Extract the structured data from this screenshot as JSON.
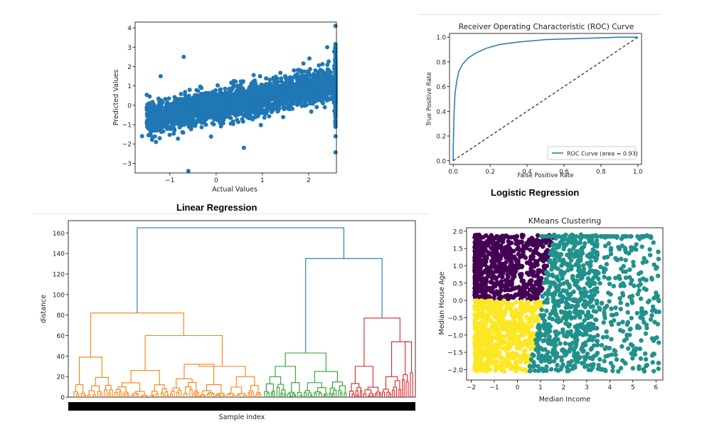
{
  "captions": {
    "linear": "Linear Regression",
    "logistic": "Logistic Regression"
  },
  "colors": {
    "blue": "#1f77b4",
    "orange": "#ff7f0e",
    "green": "#2ca02c",
    "red": "#d62728",
    "link_blue": "#1f77b4",
    "purple": "#440154",
    "teal": "#21918c",
    "yellow": "#fde725"
  },
  "chart_data": [
    {
      "id": "linear",
      "type": "scatter",
      "title": "",
      "xlabel": "Actual Values",
      "ylabel": "Predicted Values",
      "xlim": [
        -1.75,
        2.6
      ],
      "ylim": [
        -3.5,
        4.3
      ],
      "xticks": [
        "−1",
        "0",
        "1",
        "2"
      ],
      "xtick_values": [
        -1,
        0,
        1,
        2
      ],
      "yticks": [
        "−3",
        "−2",
        "−1",
        "0",
        "1",
        "2",
        "3",
        "4"
      ],
      "ytick_values": [
        -3,
        -2,
        -1,
        0,
        1,
        2,
        3,
        4
      ],
      "points_sample": [
        [
          -1.6,
          -1.6
        ],
        [
          -1.4,
          -0.8
        ],
        [
          -1.3,
          -1.9
        ],
        [
          -1.2,
          1.5
        ],
        [
          -1.1,
          -1.0
        ],
        [
          -1.0,
          -0.5
        ],
        [
          -0.9,
          -1.3
        ],
        [
          -0.8,
          -0.2
        ],
        [
          -0.7,
          2.5
        ],
        [
          -0.6,
          -3.4
        ],
        [
          -0.5,
          0.2
        ],
        [
          -0.4,
          -0.6
        ],
        [
          -0.3,
          0.4
        ],
        [
          -0.2,
          -0.4
        ],
        [
          0.0,
          0.3
        ],
        [
          0.2,
          0.0
        ],
        [
          0.4,
          0.6
        ],
        [
          0.6,
          0.2
        ],
        [
          0.6,
          -2.2
        ],
        [
          0.8,
          0.8
        ],
        [
          1.0,
          0.5
        ],
        [
          1.2,
          1.0
        ],
        [
          1.4,
          0.6
        ],
        [
          1.6,
          1.1
        ],
        [
          1.8,
          0.8
        ],
        [
          2.0,
          1.1
        ],
        [
          2.2,
          1.4
        ],
        [
          2.4,
          3.0
        ],
        [
          2.58,
          4.1
        ],
        [
          2.58,
          -1.0
        ]
      ]
    },
    {
      "id": "roc",
      "type": "line",
      "title": "Receiver Operating Characteristic (ROC) Curve",
      "xlabel": "False Positive Rate",
      "ylabel": "True Positive Rate",
      "xlim": [
        -0.02,
        1.02
      ],
      "ylim": [
        -0.03,
        1.03
      ],
      "xticks": [
        "0.0",
        "0.2",
        "0.4",
        "0.6",
        "0.8",
        "1.0"
      ],
      "xtick_values": [
        0,
        0.2,
        0.4,
        0.6,
        0.8,
        1.0
      ],
      "yticks": [
        "0.0",
        "0.2",
        "0.4",
        "0.6",
        "0.8",
        "1.0"
      ],
      "ytick_values": [
        0,
        0.2,
        0.4,
        0.6,
        0.8,
        1.0
      ],
      "legend": "ROC Curve (area = 0.93)",
      "legend_loc": "lower right",
      "series": [
        {
          "name": "ROC Curve (area = 0.93)",
          "x": [
            0,
            0.0,
            0.005,
            0.01,
            0.02,
            0.03,
            0.05,
            0.08,
            0.12,
            0.18,
            0.25,
            0.35,
            0.5,
            0.7,
            0.9,
            1.0
          ],
          "y": [
            0,
            0.1,
            0.4,
            0.55,
            0.65,
            0.72,
            0.78,
            0.83,
            0.87,
            0.91,
            0.94,
            0.96,
            0.98,
            0.99,
            1.0,
            1.0
          ]
        },
        {
          "name": "",
          "x": [
            0,
            1
          ],
          "y": [
            0,
            1
          ]
        }
      ]
    },
    {
      "id": "dendrogram",
      "type": "line",
      "title": "",
      "xlabel": "Sample index",
      "ylabel": "distance",
      "ylim": [
        0,
        172
      ],
      "yticks": [
        "0",
        "20",
        "40",
        "60",
        "80",
        "100",
        "120",
        "140",
        "160"
      ],
      "ytick_values": [
        0,
        20,
        40,
        60,
        80,
        100,
        120,
        140,
        160
      ],
      "clusters": [
        {
          "name": "orange",
          "merge_height": 82,
          "sub_heights": [
            39,
            60,
            23,
            32
          ]
        },
        {
          "name": "green",
          "merge_height": 43,
          "sub_heights": [
            30,
            25
          ]
        },
        {
          "name": "red",
          "merge_height": 77,
          "sub_heights": [
            54,
            30,
            20
          ]
        }
      ],
      "top_merges": [
        135,
        165
      ]
    },
    {
      "id": "kmeans",
      "type": "scatter",
      "title": "KMeans Clustering",
      "xlabel": "Median Income",
      "ylabel": "Median House Age",
      "xlim": [
        -2.2,
        6.3
      ],
      "ylim": [
        -2.3,
        2.1
      ],
      "xticks": [
        "−2",
        "−1",
        "0",
        "1",
        "2",
        "3",
        "4",
        "5",
        "6"
      ],
      "xtick_values": [
        -2,
        -1,
        0,
        1,
        2,
        3,
        4,
        5,
        6
      ],
      "yticks": [
        "−2.0",
        "−1.5",
        "−1.0",
        "−0.5",
        "0.0",
        "0.5",
        "1.0",
        "1.5",
        "2.0"
      ],
      "ytick_values": [
        -2,
        -1.5,
        -1,
        -0.5,
        0,
        0.5,
        1,
        1.5,
        2
      ],
      "clusters": [
        "purple",
        "yellow",
        "teal"
      ]
    }
  ]
}
